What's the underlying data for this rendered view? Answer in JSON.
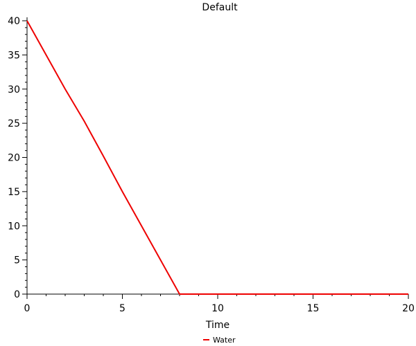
{
  "chart_data": {
    "type": "line",
    "title": "Default",
    "xlabel": "Time",
    "ylabel": "",
    "xlim": [
      0,
      20
    ],
    "ylim": [
      0,
      40
    ],
    "xticks": [
      0,
      5,
      10,
      15,
      20
    ],
    "yticks": [
      0,
      5,
      10,
      15,
      20,
      25,
      30,
      35,
      40
    ],
    "grid": false,
    "legend": "bottom-center",
    "series": [
      {
        "name": "Water",
        "color": "#ee0000",
        "x": [
          0,
          1,
          2,
          3,
          4,
          5,
          6,
          7,
          8,
          9,
          10,
          11,
          12,
          13,
          14,
          15,
          16,
          17,
          18,
          19,
          20
        ],
        "y": [
          40,
          35,
          30,
          25.3,
          20.2,
          15,
          10,
          5,
          0,
          0,
          0,
          0,
          0,
          0,
          0,
          0,
          0,
          0,
          0,
          0,
          0
        ]
      }
    ]
  }
}
